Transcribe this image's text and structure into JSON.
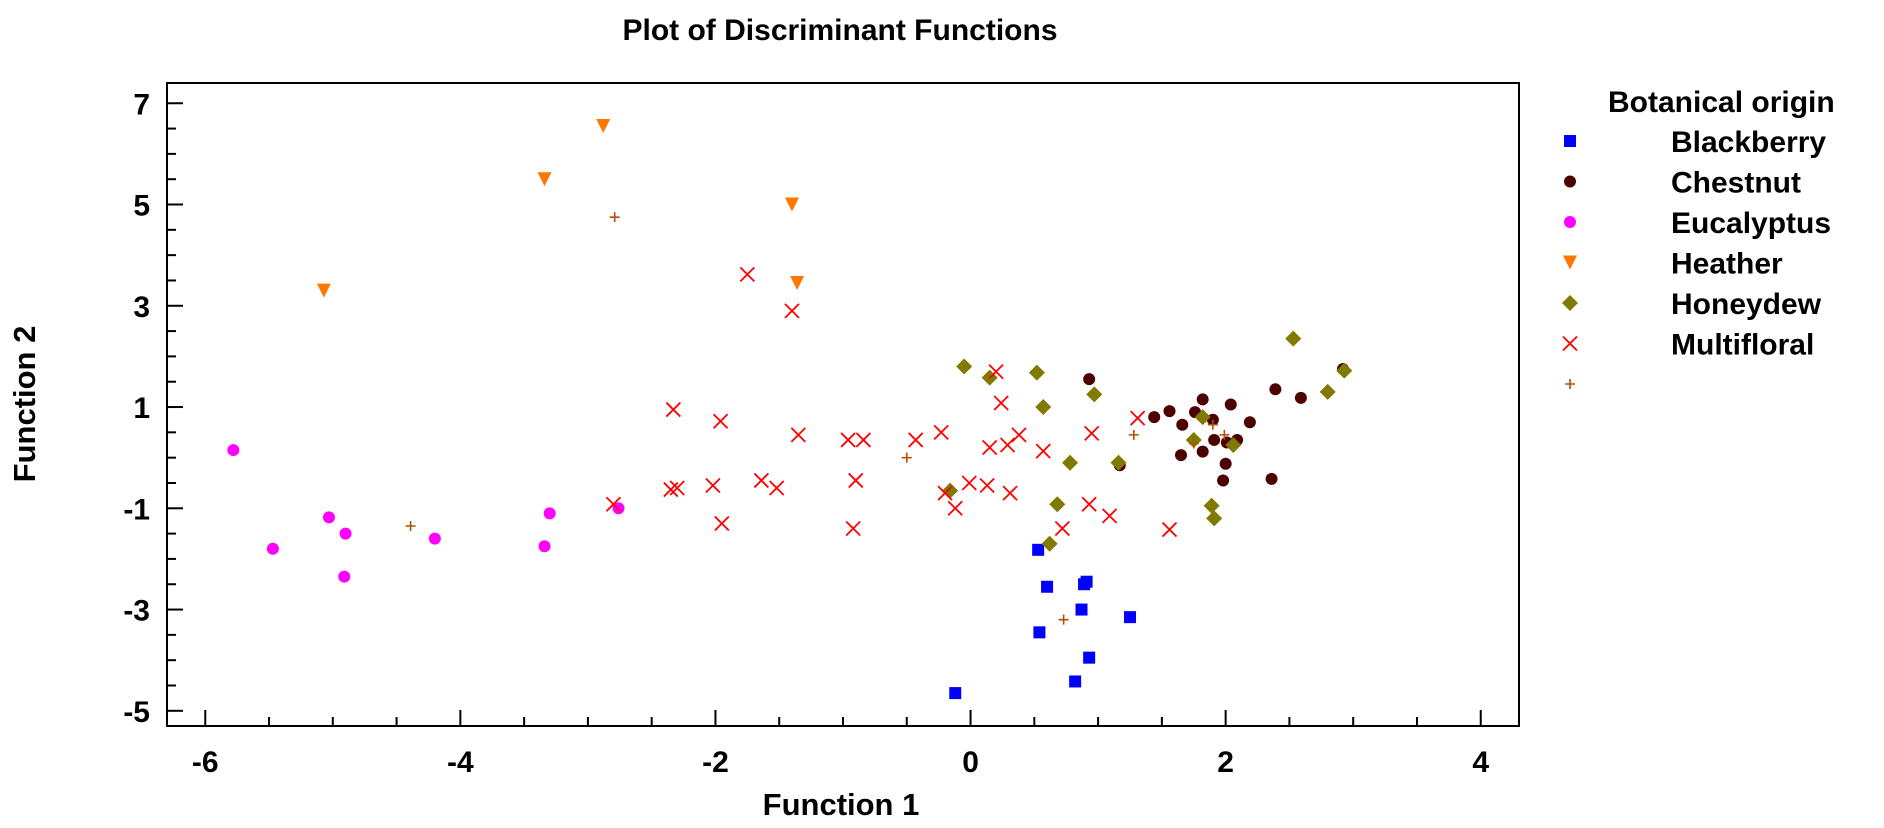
{
  "chart_data": {
    "type": "scatter",
    "title": "Plot of Discriminant Functions",
    "xlabel": "Function 1",
    "ylabel": "Function 2",
    "xlim": [
      -6.3,
      4.3
    ],
    "ylim": [
      -5.3,
      7.4
    ],
    "xticks": [
      -6,
      -4,
      -2,
      0,
      2,
      4
    ],
    "yticks": [
      -5,
      -3,
      -1,
      1,
      3,
      5,
      7
    ],
    "xtick_labels": [
      "-6",
      "-4",
      "-2",
      "0",
      "2",
      "4"
    ],
    "ytick_labels": [
      "-5",
      "-3",
      "-1",
      "1",
      "3",
      "5",
      "7"
    ],
    "legend": {
      "title": "Botanical origin",
      "placement": "right",
      "entries": [
        "Blackberry",
        "Chestnut",
        "Eucalyptus",
        "Heather",
        "Honeydew",
        "Multifloral",
        ""
      ]
    },
    "series": [
      {
        "name": "Blackberry",
        "marker": "square",
        "color": "#0000ff",
        "points": [
          [
            -0.12,
            -4.65
          ],
          [
            0.53,
            -1.82
          ],
          [
            0.6,
            -2.55
          ],
          [
            0.54,
            -3.45
          ],
          [
            0.87,
            -3.0
          ],
          [
            0.89,
            -2.5
          ],
          [
            0.91,
            -2.45
          ],
          [
            0.93,
            -3.95
          ],
          [
            0.82,
            -4.42
          ],
          [
            1.25,
            -3.15
          ]
        ]
      },
      {
        "name": "Chestnut",
        "marker": "circle",
        "color": "#4d0000",
        "points": [
          [
            0.93,
            1.55
          ],
          [
            1.17,
            -0.15
          ],
          [
            1.44,
            0.8
          ],
          [
            1.56,
            0.92
          ],
          [
            1.65,
            0.05
          ],
          [
            1.66,
            0.65
          ],
          [
            1.76,
            0.9
          ],
          [
            1.82,
            1.15
          ],
          [
            1.82,
            0.12
          ],
          [
            1.9,
            0.75
          ],
          [
            1.91,
            0.35
          ],
          [
            1.98,
            -0.45
          ],
          [
            2.0,
            -0.12
          ],
          [
            2.04,
            1.05
          ],
          [
            2.09,
            0.35
          ],
          [
            2.19,
            0.7
          ],
          [
            2.36,
            -0.42
          ],
          [
            2.39,
            1.35
          ],
          [
            2.59,
            1.18
          ],
          [
            2.92,
            1.75
          ],
          [
            2.01,
            0.3
          ]
        ]
      },
      {
        "name": "Eucalyptus",
        "marker": "circle",
        "color": "#ff00ff",
        "points": [
          [
            -5.78,
            0.15
          ],
          [
            -5.47,
            -1.8
          ],
          [
            -5.03,
            -1.18
          ],
          [
            -4.9,
            -1.5
          ],
          [
            -4.91,
            -2.35
          ],
          [
            -4.2,
            -1.6
          ],
          [
            -3.34,
            -1.75
          ],
          [
            -3.3,
            -1.1
          ],
          [
            -2.76,
            -1.0
          ]
        ]
      },
      {
        "name": "Heather",
        "marker": "triangle-down",
        "color": "#ff7700",
        "points": [
          [
            -5.07,
            3.3
          ],
          [
            -3.34,
            5.5
          ],
          [
            -2.88,
            6.55
          ],
          [
            -1.4,
            5.0
          ],
          [
            -1.36,
            3.45
          ]
        ]
      },
      {
        "name": "Honeydew",
        "marker": "diamond",
        "color": "#807a00",
        "points": [
          [
            -0.16,
            -0.65
          ],
          [
            -0.05,
            1.8
          ],
          [
            0.15,
            1.58
          ],
          [
            0.52,
            1.68
          ],
          [
            0.57,
            1.0
          ],
          [
            0.62,
            -1.7
          ],
          [
            0.68,
            -0.92
          ],
          [
            0.78,
            -0.1
          ],
          [
            0.97,
            1.25
          ],
          [
            1.16,
            -0.1
          ],
          [
            1.75,
            0.35
          ],
          [
            1.82,
            0.8
          ],
          [
            1.89,
            -0.95
          ],
          [
            1.91,
            -1.2
          ],
          [
            2.06,
            0.25
          ],
          [
            2.53,
            2.35
          ],
          [
            2.8,
            1.3
          ],
          [
            2.93,
            1.72
          ]
        ]
      },
      {
        "name": "Multifloral",
        "marker": "x",
        "color": "#ff0000",
        "points": [
          [
            -2.33,
            0.95
          ],
          [
            -2.35,
            -0.63
          ],
          [
            -2.3,
            -0.6
          ],
          [
            -2.02,
            -0.55
          ],
          [
            -1.96,
            0.72
          ],
          [
            -1.95,
            -1.3
          ],
          [
            -1.75,
            3.62
          ],
          [
            -1.64,
            -0.45
          ],
          [
            -1.52,
            -0.6
          ],
          [
            -1.4,
            2.9
          ],
          [
            -1.35,
            0.45
          ],
          [
            -2.8,
            -0.92
          ],
          [
            -0.96,
            0.35
          ],
          [
            -0.92,
            -1.4
          ],
          [
            -0.9,
            -0.45
          ],
          [
            -0.84,
            0.35
          ],
          [
            -0.43,
            0.35
          ],
          [
            -0.23,
            0.5
          ],
          [
            -0.2,
            -0.7
          ],
          [
            -0.12,
            -1.0
          ],
          [
            -0.01,
            -0.5
          ],
          [
            0.13,
            -0.55
          ],
          [
            0.15,
            0.2
          ],
          [
            0.2,
            1.7
          ],
          [
            0.24,
            1.08
          ],
          [
            0.29,
            0.25
          ],
          [
            0.31,
            -0.7
          ],
          [
            0.38,
            0.45
          ],
          [
            0.57,
            0.13
          ],
          [
            0.72,
            -1.4
          ],
          [
            0.93,
            -0.92
          ],
          [
            0.95,
            0.48
          ],
          [
            1.09,
            -1.15
          ],
          [
            1.31,
            0.78
          ],
          [
            1.56,
            -1.42
          ]
        ]
      },
      {
        "name": "",
        "marker": "plus",
        "color": "#b05000",
        "points": [
          [
            -4.39,
            -1.35
          ],
          [
            -2.79,
            4.75
          ],
          [
            -0.5,
            0.0
          ],
          [
            0.73,
            -3.2
          ],
          [
            1.28,
            0.45
          ],
          [
            1.75,
            0.28
          ],
          [
            1.9,
            0.65
          ],
          [
            1.99,
            0.45
          ]
        ]
      }
    ]
  }
}
